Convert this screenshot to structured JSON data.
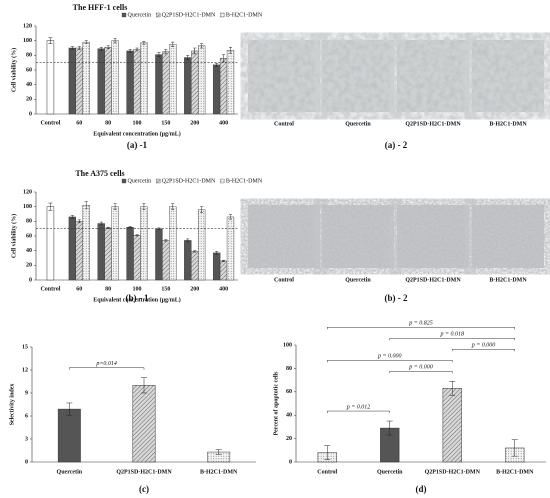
{
  "chart_data": [
    {
      "type": "bar",
      "title": "The HFF-1 cells",
      "caption": "(a) -1",
      "x_label": "Equivalent concentration (μg/mL)",
      "y_label": "Cell viability (%)",
      "categories": [
        "Control",
        "60",
        "80",
        "100",
        "150",
        "200",
        "400"
      ],
      "control": {
        "value": 100,
        "error": 4
      },
      "series": [
        {
          "name": "Quercetin",
          "color": "#555555",
          "pattern": "solid",
          "values": [
            null,
            90,
            89,
            86,
            81,
            77,
            67
          ],
          "errors": [
            null,
            2,
            2,
            2,
            3,
            3,
            2
          ]
        },
        {
          "name": "Q2P1SD-H2C1-DMN",
          "color": "#c8c8c8",
          "pattern": "hatch",
          "values": [
            null,
            90,
            91,
            88,
            85,
            86,
            76
          ],
          "errors": [
            null,
            2,
            2,
            2,
            3,
            4,
            5
          ]
        },
        {
          "name": "B-H2C1-DMN",
          "color": "#eeeeee",
          "pattern": "dots",
          "values": [
            null,
            98,
            100,
            97,
            95,
            93,
            87
          ],
          "errors": [
            null,
            2,
            3,
            2,
            3,
            3,
            4
          ]
        }
      ],
      "ylim": [
        0,
        120
      ],
      "yticks": [
        0,
        20,
        40,
        60,
        80,
        100,
        120
      ],
      "reference_line": 70
    },
    {
      "type": "bar",
      "title": "The A375 cells",
      "caption": "(b) - 1",
      "x_label": "Equivalent concentration (μg/mL)",
      "y_label": "Cell viability (%)",
      "categories": [
        "Control",
        "60",
        "80",
        "100",
        "150",
        "200",
        "400"
      ],
      "control": {
        "value": 100,
        "error": 5
      },
      "series": [
        {
          "name": "Quercetin",
          "color": "#555555",
          "pattern": "solid",
          "values": [
            null,
            86,
            77,
            72,
            70,
            54,
            37
          ],
          "errors": [
            null,
            2,
            2,
            1,
            1,
            2,
            2
          ]
        },
        {
          "name": "Q2P1SD-H2C1-DMN",
          "color": "#c8c8c8",
          "pattern": "hatch",
          "values": [
            null,
            80,
            71,
            61,
            54,
            39,
            26
          ],
          "errors": [
            null,
            2,
            1,
            1,
            1,
            1,
            1
          ]
        },
        {
          "name": "B-H2C1-DMN",
          "color": "#eeeeee",
          "pattern": "dots",
          "values": [
            null,
            102,
            100,
            100,
            100,
            96,
            86
          ],
          "errors": [
            null,
            5,
            4,
            4,
            4,
            4,
            3
          ]
        }
      ],
      "ylim": [
        0,
        120
      ],
      "yticks": [
        0,
        20,
        40,
        60,
        80,
        100,
        120
      ],
      "reference_line": 70
    },
    {
      "type": "bar",
      "caption": "(c)",
      "y_label": "Selectivity index",
      "categories": [
        "Quercetin",
        "Q2P1SD-H2C1-DMN",
        "B-H2C1-DMN"
      ],
      "values": [
        6.9,
        10.0,
        1.3
      ],
      "errors": [
        0.8,
        1.0,
        0.3
      ],
      "patterns": [
        "solid",
        "hatch",
        "dots"
      ],
      "colors": [
        "#555555",
        "#c8c8c8",
        "#eeeeee"
      ],
      "ylim": [
        0,
        15
      ],
      "yticks": [
        0,
        3,
        6,
        9,
        12,
        15
      ],
      "annotations": [
        {
          "text": "p=0.014",
          "between": [
            "Quercetin",
            "Q2P1SD-H2C1-DMN"
          ]
        }
      ]
    },
    {
      "type": "bar",
      "caption": "(d)",
      "y_label": "Percent of apoptotic cells",
      "categories": [
        "Control",
        "Quercetin",
        "Q2P1SD-H2C1-DMN",
        "B-H2C1-DMN"
      ],
      "values": [
        8,
        29,
        63,
        12
      ],
      "errors": [
        6,
        6,
        6,
        7
      ],
      "patterns": [
        "dots",
        "solid",
        "hatch",
        "dots"
      ],
      "colors": [
        "#eeeeee",
        "#555555",
        "#c8c8c8",
        "#eeeeee"
      ],
      "ylim": [
        0,
        100
      ],
      "yticks": [
        0,
        20,
        40,
        60,
        80,
        100
      ],
      "annotations": [
        {
          "text": "p = 0.012",
          "between": [
            "Control",
            "Quercetin"
          ]
        },
        {
          "text": "p = 0.000",
          "between": [
            "Quercetin",
            "Q2P1SD-H2C1-DMN"
          ]
        },
        {
          "text": "p = 0.000",
          "between": [
            "Control",
            "Q2P1SD-H2C1-DMN"
          ]
        },
        {
          "text": "p = 0.000",
          "between": [
            "Q2P1SD-H2C1-DMN",
            "B-H2C1-DMN"
          ]
        },
        {
          "text": "p = 0.018",
          "between": [
            "Quercetin",
            "B-H2C1-DMN"
          ]
        },
        {
          "text": "p = 0.825",
          "between": [
            "Control",
            "B-H2C1-DMN"
          ]
        }
      ]
    }
  ],
  "image_panels": [
    {
      "caption": "(a) - 2",
      "labels": [
        "Control",
        "Quercetin",
        "Q2P1SD-H2C1-DMN",
        "B-H2C1-DMN"
      ]
    },
    {
      "caption": "(b) - 2",
      "labels": [
        "Control",
        "Quercetin",
        "Q2P1SD-H2C1-DMN",
        "B-H2C1-DMN"
      ]
    }
  ]
}
